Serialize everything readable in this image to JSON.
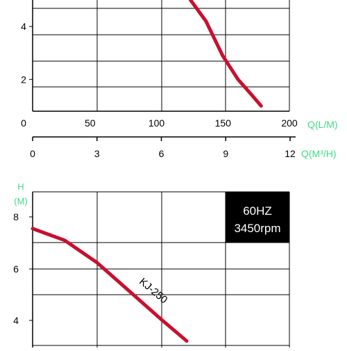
{
  "colors": {
    "curve": "#c8102e",
    "unit_label": "#3ddc84",
    "axis": "#000000",
    "grid": "#000000",
    "badge_bg": "#000000",
    "badge_text": "#ffffff"
  },
  "chart_data": [
    {
      "type": "line",
      "ylim": [
        0.8,
        5.0
      ],
      "xlim": [
        0,
        200
      ],
      "y_ticks": [
        "2",
        "4"
      ],
      "y_tick_values": [
        2,
        4
      ],
      "grid": true,
      "series": [
        {
          "values_x": [
            123,
            135,
            148,
            160,
            170,
            178
          ],
          "values_y": [
            5.0,
            4.2,
            2.9,
            2.0,
            1.45,
            1.0
          ]
        }
      ]
    },
    {
      "type": "line",
      "ylim": [
        3.2,
        8.9
      ],
      "xlim": [
        0,
        200
      ],
      "y_ticks": [
        "4",
        "6",
        "8"
      ],
      "y_tick_values": [
        4,
        6,
        8
      ],
      "ylabel": [
        "H",
        "(M)"
      ],
      "badge_lines": [
        "60HZ",
        "3450rpm"
      ],
      "grid": true,
      "series": [
        {
          "name": "KJ-250",
          "values_x": [
            0,
            25,
            50,
            75,
            100,
            120
          ],
          "values_y": [
            7.55,
            7.1,
            6.25,
            5.15,
            4.05,
            3.2
          ]
        }
      ]
    }
  ],
  "axes": {
    "x_lpm": {
      "label": "Q(L/M)",
      "ticks": [
        "0",
        "50",
        "100",
        "150",
        "200"
      ],
      "tick_values": [
        0,
        50,
        100,
        150,
        200
      ]
    },
    "x_m3h": {
      "label": "Q(M³/H)",
      "ticks": [
        "0",
        "3",
        "6",
        "9",
        "12"
      ],
      "tick_values": [
        0,
        3,
        6,
        9,
        12
      ]
    }
  }
}
